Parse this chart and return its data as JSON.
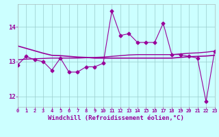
{
  "x": [
    0,
    1,
    2,
    3,
    4,
    5,
    6,
    7,
    8,
    9,
    10,
    11,
    12,
    13,
    14,
    15,
    16,
    17,
    18,
    19,
    20,
    21,
    22,
    23
  ],
  "windchill": [
    12.9,
    13.15,
    13.05,
    13.0,
    12.75,
    13.1,
    12.7,
    12.7,
    12.85,
    12.85,
    12.95,
    14.45,
    13.75,
    13.8,
    13.55,
    13.55,
    13.55,
    14.1,
    13.2,
    13.2,
    13.15,
    13.1,
    11.85,
    13.3
  ],
  "trend1": [
    13.45,
    13.38,
    13.31,
    13.24,
    13.18,
    13.17,
    13.15,
    13.13,
    13.12,
    13.1,
    13.1,
    13.1,
    13.1,
    13.1,
    13.1,
    13.1,
    13.1,
    13.1,
    13.1,
    13.12,
    13.14,
    13.15,
    13.16,
    13.18
  ],
  "trend2": [
    13.05,
    13.07,
    13.08,
    13.09,
    13.1,
    13.1,
    13.1,
    13.1,
    13.11,
    13.12,
    13.13,
    13.15,
    13.17,
    13.19,
    13.2,
    13.2,
    13.2,
    13.2,
    13.2,
    13.22,
    13.24,
    13.25,
    13.27,
    13.3
  ],
  "line_color": "#990099",
  "bg_color": "#ccffff",
  "grid_color": "#99cccc",
  "xlabel": "Windchill (Refroidissement éolien,°C)",
  "ylim": [
    11.7,
    14.65
  ],
  "xlim": [
    0,
    23
  ],
  "yticks": [
    12,
    13,
    14
  ],
  "xticks": [
    0,
    1,
    2,
    3,
    4,
    5,
    6,
    7,
    8,
    9,
    10,
    11,
    12,
    13,
    14,
    15,
    16,
    17,
    18,
    19,
    20,
    21,
    22,
    23
  ]
}
